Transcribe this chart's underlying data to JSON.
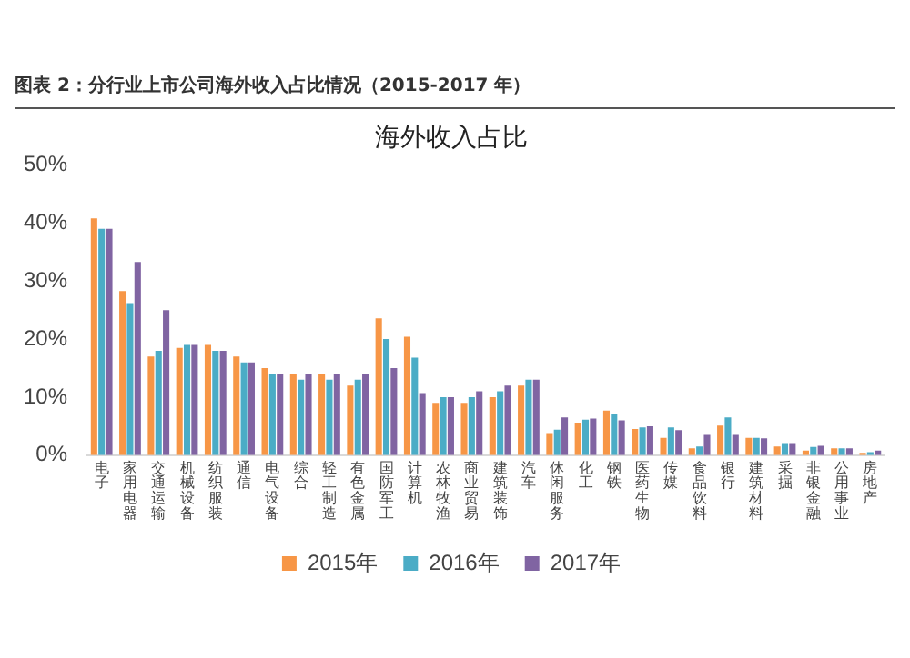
{
  "chart_data": {
    "type": "bar",
    "title": "图表 2：分行业上市公司海外收入占比情况（2015-2017 年）",
    "subtitle": "海外收入占比",
    "categories": [
      "电子",
      "家用电器",
      "交通运输",
      "机械设备",
      "纺织服装",
      "通信",
      "电气设备",
      "综合",
      "轻工制造",
      "有色金属",
      "国防军工",
      "计算机",
      "农林牧渔",
      "商业贸易",
      "建筑装饰",
      "汽车",
      "休闲服务",
      "化工",
      "钢铁",
      "医药生物",
      "传媒",
      "食品饮料",
      "银行",
      "建筑材料",
      "采掘",
      "非银金融",
      "公用事业",
      "房地产"
    ],
    "series": [
      {
        "name": "2015年",
        "color": "#f79646",
        "values": [
          40.8,
          28.3,
          17,
          18.5,
          19,
          17,
          15,
          14,
          14,
          12,
          23.6,
          20.4,
          9,
          9,
          10,
          12,
          3.8,
          5.6,
          7.7,
          4.5,
          3.0,
          1.2,
          5.1,
          3.0,
          1.5,
          0.8,
          1.2,
          0.4
        ]
      },
      {
        "name": "2016年",
        "color": "#4bacc6",
        "values": [
          39,
          26.2,
          18,
          19,
          18,
          16,
          14,
          13,
          13,
          13,
          20,
          16.8,
          10,
          10,
          11,
          13,
          4.4,
          6.1,
          7.1,
          4.8,
          4.8,
          1.5,
          6.5,
          3.0,
          2.1,
          1.4,
          1.2,
          0.5
        ]
      },
      {
        "name": "2017年",
        "color": "#8064a2",
        "values": [
          39,
          33.3,
          25,
          19,
          18,
          16,
          14,
          14,
          14,
          14,
          15,
          10.7,
          10,
          11,
          12,
          13,
          6.5,
          6.3,
          6.0,
          5.0,
          4.3,
          3.5,
          3.5,
          2.9,
          2.1,
          1.6,
          1.2,
          0.8
        ]
      }
    ],
    "ylim": [
      0,
      50
    ],
    "yticks": [
      {
        "value": 0,
        "label": "0%"
      },
      {
        "value": 10,
        "label": "10%"
      },
      {
        "value": 20,
        "label": "20%"
      },
      {
        "value": 30,
        "label": "30%"
      },
      {
        "value": 40,
        "label": "40%"
      },
      {
        "value": 50,
        "label": "50%"
      }
    ],
    "grid": false,
    "legend": "bottom"
  }
}
